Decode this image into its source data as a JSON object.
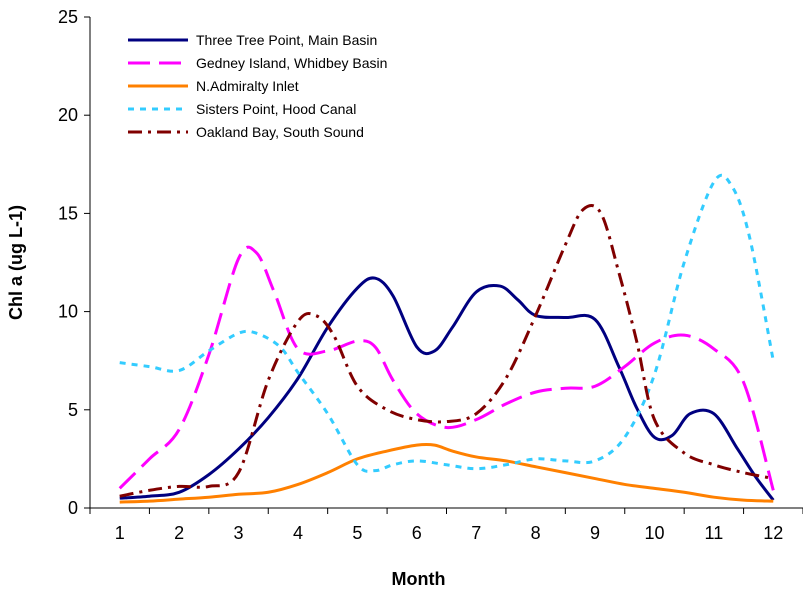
{
  "chart_data": {
    "type": "line",
    "title": "",
    "xlabel": "Month",
    "ylabel": "Chl a (ug L-1)",
    "xlim": [
      0.5,
      12.5
    ],
    "ylim": [
      0,
      25
    ],
    "x_ticks": [
      "1",
      "2",
      "3",
      "4",
      "5",
      "6",
      "7",
      "8",
      "9",
      "10",
      "11",
      "12"
    ],
    "y_ticks": [
      "0",
      "5",
      "10",
      "15",
      "20",
      "25"
    ],
    "grid": false,
    "legend_position": "top-left",
    "series": [
      {
        "name": "Three Tree Point, Main Basin",
        "color": "#000080",
        "dash": "solid",
        "x": [
          1,
          1.5,
          2,
          2.5,
          3,
          3.5,
          4,
          4.5,
          5,
          5.3,
          5.6,
          6,
          6.3,
          6.6,
          7,
          7.4,
          7.7,
          8,
          8.5,
          9,
          9.4,
          9.7,
          10,
          10.3,
          10.6,
          11,
          11.4,
          11.7,
          12
        ],
        "y": [
          0.5,
          0.6,
          0.8,
          1.7,
          3.0,
          4.6,
          6.6,
          9.2,
          11.2,
          11.7,
          10.8,
          8.2,
          8.0,
          9.2,
          11.0,
          11.3,
          10.6,
          9.8,
          9.7,
          9.6,
          7.2,
          5.1,
          3.6,
          3.7,
          4.8,
          4.8,
          3.0,
          1.6,
          0.4
        ]
      },
      {
        "name": "Gedney Island, Whidbey Basin",
        "color": "#ff00ff",
        "dash": "long-dash",
        "x": [
          1,
          1.5,
          2,
          2.5,
          3,
          3.3,
          3.6,
          4,
          4.5,
          5,
          5.3,
          5.6,
          6,
          6.5,
          7,
          7.5,
          8,
          8.5,
          9,
          9.5,
          10,
          10.5,
          11,
          11.5,
          12
        ],
        "y": [
          1.0,
          2.5,
          4.0,
          7.8,
          12.7,
          13.0,
          11.0,
          8.1,
          8.0,
          8.5,
          8.2,
          6.5,
          4.8,
          4.1,
          4.5,
          5.3,
          5.9,
          6.1,
          6.2,
          7.2,
          8.4,
          8.8,
          8.1,
          6.4,
          0.9
        ]
      },
      {
        "name": "N.Admiralty Inlet",
        "color": "#ff8000",
        "dash": "solid",
        "x": [
          1,
          1.5,
          2,
          2.5,
          3,
          3.5,
          4,
          4.5,
          5,
          5.5,
          6,
          6.3,
          6.6,
          7,
          7.5,
          8,
          8.5,
          9,
          9.5,
          10,
          10.5,
          11,
          11.5,
          12
        ],
        "y": [
          0.3,
          0.35,
          0.45,
          0.55,
          0.7,
          0.8,
          1.2,
          1.8,
          2.5,
          2.9,
          3.2,
          3.2,
          2.9,
          2.6,
          2.4,
          2.1,
          1.8,
          1.5,
          1.2,
          1.0,
          0.8,
          0.55,
          0.4,
          0.35
        ]
      },
      {
        "name": "Sisters Point, Hood Canal",
        "color": "#33ccff",
        "dash": "short-dash",
        "x": [
          1,
          1.5,
          2,
          2.5,
          3,
          3.3,
          3.7,
          4,
          4.5,
          5,
          5.3,
          5.6,
          6,
          6.5,
          7,
          7.5,
          8,
          8.5,
          9,
          9.5,
          10,
          10.5,
          11,
          11.3,
          11.6,
          12
        ],
        "y": [
          7.4,
          7.2,
          7.0,
          8.0,
          8.9,
          8.9,
          8.2,
          6.9,
          4.8,
          2.2,
          1.9,
          2.2,
          2.4,
          2.2,
          2.0,
          2.2,
          2.5,
          2.4,
          2.4,
          3.6,
          6.8,
          12.5,
          16.6,
          16.4,
          13.8,
          7.5
        ]
      },
      {
        "name": "Oakland Bay, South Sound",
        "color": "#800000",
        "dash": "dash-dot",
        "x": [
          1,
          1.5,
          2,
          2.5,
          3,
          3.5,
          4,
          4.3,
          4.6,
          5,
          5.5,
          6,
          6.5,
          7,
          7.5,
          8,
          8.5,
          8.8,
          9.1,
          9.4,
          9.7,
          10,
          10.5,
          11,
          11.5,
          12
        ],
        "y": [
          0.6,
          0.9,
          1.1,
          1.1,
          1.8,
          6.5,
          9.5,
          9.8,
          8.8,
          6.2,
          5.0,
          4.5,
          4.4,
          4.8,
          6.6,
          9.8,
          13.4,
          15.2,
          15.0,
          12.0,
          8.5,
          4.5,
          2.8,
          2.2,
          1.8,
          1.5
        ]
      }
    ]
  }
}
